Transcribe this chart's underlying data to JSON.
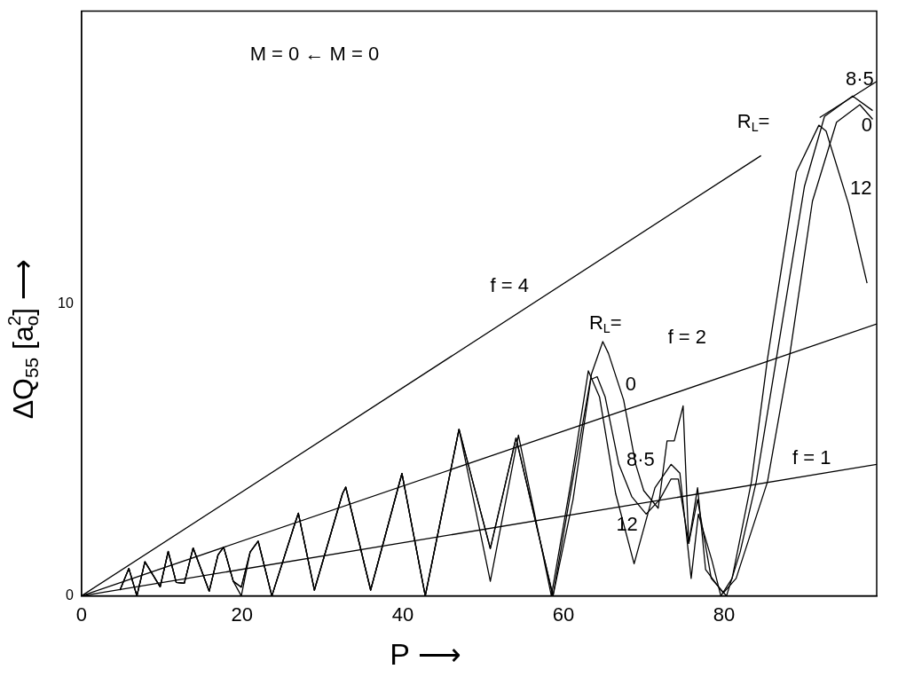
{
  "chart_data": {
    "type": "line",
    "xlabel": "P ⟶",
    "ylabel": "ΔQ$_{55}$ [a$_{o}$$^{2}$] ⟶",
    "xlim": [
      0,
      99
    ],
    "xticks": [
      0,
      20,
      40,
      60,
      80
    ],
    "ylim": [
      0,
      20
    ],
    "yticks": [
      0,
      10
    ],
    "grid": false,
    "legend": false,
    "marker": "none",
    "line_style": "solid",
    "series": [
      {
        "color": "#000000",
        "x": [
          0,
          84.6,
          88,
          91.9,
          99
        ],
        "values": [
          0,
          15.06,
          null,
          16.36,
          17.6
        ]
      },
      {
        "color": "#000000",
        "x": [
          0,
          99
        ],
        "values": [
          0,
          9.3
        ]
      },
      {
        "color": "#000000",
        "x": [
          0,
          99
        ],
        "values": [
          0,
          4.5
        ]
      },
      {
        "color": "#000000",
        "x": [
          4.8,
          5.9,
          6.9,
          7.9,
          9.8,
          10.8,
          11.8,
          12.8,
          13.9,
          15.9,
          17.0,
          17.7,
          18.9,
          19.9,
          21.0,
          22.0,
          23.7,
          26.6,
          27.0,
          29.0,
          32.5,
          32.9,
          36.0,
          39.9,
          42.8,
          47.0,
          50.9,
          54.1,
          58.7,
          61.5,
          63.5,
          64.9,
          65.6,
          67.5,
          69.0,
          70.0,
          71.8,
          72.9,
          73.8,
          74.9,
          75.6,
          76.7,
          77.7,
          79.9,
          81.5,
          85.4,
          88.1,
          91.0,
          94.0,
          96.9,
          98.5
        ],
        "values": [
          0.2,
          0.94,
          0,
          1.17,
          0.31,
          1.52,
          0.46,
          0.43,
          1.64,
          0.16,
          1.4,
          1.67,
          0.5,
          0.3,
          1.5,
          1.87,
          0,
          2.5,
          2.83,
          0.2,
          3.5,
          3.72,
          0.2,
          4.19,
          0,
          5.7,
          1.62,
          5.4,
          0,
          4.5,
          7.6,
          8.7,
          8.3,
          6.7,
          4.5,
          3.6,
          3.0,
          5.3,
          5.3,
          6.5,
          1.8,
          3.7,
          0.9,
          0.1,
          0.6,
          3.9,
          8.1,
          13.5,
          16.2,
          16.8,
          16.3
        ]
      },
      {
        "color": "#000000",
        "x": [
          4.8,
          5.9,
          6.9,
          7.9,
          9.8,
          10.8,
          11.8,
          12.8,
          13.9,
          15.9,
          17.0,
          17.7,
          18.9,
          19.9,
          21.0,
          22.0,
          23.7,
          26.6,
          27.0,
          29.0,
          32.5,
          32.9,
          36.0,
          39.9,
          42.8,
          47.0,
          50.9,
          54.1,
          58.7,
          61.2,
          63.4,
          64.2,
          65.2,
          66.9,
          68.5,
          70.3,
          72.0,
          73.4,
          74.3,
          75.6,
          76.7,
          78.4,
          80.3,
          82.0,
          84.0,
          86.5,
          90.0,
          92.5,
          96.0,
          98.5
        ],
        "values": [
          0.2,
          0.94,
          0,
          1.17,
          0.31,
          1.52,
          0.46,
          0.43,
          1.64,
          0.16,
          1.4,
          1.67,
          0.5,
          0.3,
          1.5,
          1.87,
          0,
          2.5,
          2.83,
          0.2,
          3.5,
          3.72,
          0.2,
          4.19,
          0,
          5.7,
          1.62,
          5.4,
          0,
          3.3,
          7.4,
          7.5,
          6.8,
          4.5,
          3.4,
          2.8,
          3.3,
          4.0,
          4.0,
          1.8,
          3.3,
          0.6,
          0,
          1.5,
          3.9,
          8.1,
          14.0,
          16.4,
          17.1,
          16.6
        ]
      },
      {
        "color": "#000000",
        "x": [
          4.8,
          5.9,
          6.9,
          7.9,
          9.8,
          10.8,
          11.8,
          12.8,
          13.9,
          15.9,
          17.0,
          17.7,
          18.9,
          19.9,
          21.0,
          22.0,
          23.7,
          26.6,
          27.0,
          29.0,
          32.5,
          32.9,
          36.0,
          39.9,
          42.8,
          47.0,
          50.9,
          54.4,
          58.5,
          61.0,
          63.1,
          64.5,
          66.5,
          68.8,
          71.4,
          73.4,
          74.5,
          75.9,
          76.8,
          78.5,
          79.6,
          81.0,
          83.4,
          85.4,
          89.0,
          91.8,
          92.7,
          95.5,
          97.8
        ],
        "values": [
          0.2,
          0.94,
          0,
          1.17,
          0.31,
          1.52,
          0.46,
          0.43,
          1.64,
          0.16,
          1.4,
          1.67,
          0.5,
          0,
          1.5,
          1.87,
          0,
          2.5,
          2.83,
          0.2,
          3.5,
          3.72,
          0.2,
          4.19,
          0,
          5.7,
          0.5,
          5.5,
          0,
          4.0,
          7.7,
          6.8,
          3.5,
          1.1,
          3.7,
          4.5,
          4.2,
          0.6,
          2.8,
          1.2,
          0,
          0.6,
          3.9,
          8.1,
          14.5,
          16.1,
          15.9,
          13.4,
          10.7
        ]
      }
    ],
    "annotations": [
      "M = 0 ← M = 0",
      "R$_{L}$=",
      {
        "text": "f = 4",
        "x": 53.3,
        "y": 9.49
      },
      {
        "text": "f = 2",
        "x": 75.4,
        "y": 7.08
      },
      {
        "text": "f = 1",
        "x": 90.9,
        "y": 4.13
      },
      {
        "text": "R$_{L}$=",
        "x": 64.9,
        "y": 8.7
      },
      {
        "text": "0",
        "x": 67.5,
        "y": 6.7
      },
      {
        "text": "8·5",
        "x": 68.5,
        "y": 3.4
      },
      {
        "text": "12",
        "x": 68.8,
        "y": 1.1
      },
      {
        "text": "8·5",
        "x": 96,
        "y": 17.1
      },
      {
        "text": "0",
        "x": 96.9,
        "y": 16.8
      },
      {
        "text": "12",
        "x": 95.5,
        "y": 13.4
      }
    ]
  }
}
